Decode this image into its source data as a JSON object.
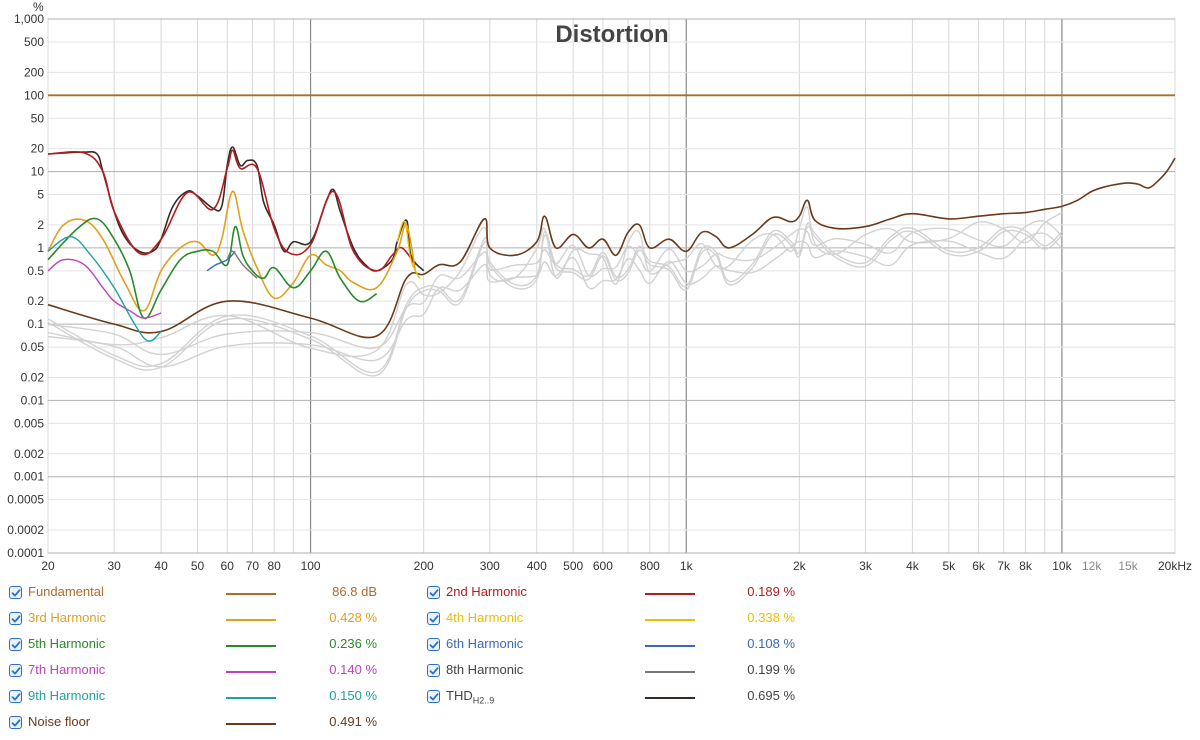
{
  "chart_data": {
    "type": "line",
    "title": "Distortion",
    "yunit": "%",
    "xunit": "Hz",
    "x_scale": "log",
    "y_scale": "log",
    "xlim": [
      20,
      20000
    ],
    "ylim": [
      0.0001,
      1000
    ],
    "grid": true,
    "x_ticks": [
      {
        "v": 20,
        "label": "20"
      },
      {
        "v": 30,
        "label": "30"
      },
      {
        "v": 40,
        "label": "40"
      },
      {
        "v": 50,
        "label": "50"
      },
      {
        "v": 60,
        "label": "60"
      },
      {
        "v": 70,
        "label": "70"
      },
      {
        "v": 80,
        "label": "80"
      },
      {
        "v": 100,
        "label": "100"
      },
      {
        "v": 200,
        "label": "200"
      },
      {
        "v": 300,
        "label": "300"
      },
      {
        "v": 400,
        "label": "400"
      },
      {
        "v": 500,
        "label": "500"
      },
      {
        "v": 600,
        "label": "600"
      },
      {
        "v": 800,
        "label": "800"
      },
      {
        "v": 1000,
        "label": "1k"
      },
      {
        "v": 2000,
        "label": "2k"
      },
      {
        "v": 3000,
        "label": "3k"
      },
      {
        "v": 4000,
        "label": "4k"
      },
      {
        "v": 5000,
        "label": "5k"
      },
      {
        "v": 6000,
        "label": "6k"
      },
      {
        "v": 7000,
        "label": "7k"
      },
      {
        "v": 8000,
        "label": "8k"
      },
      {
        "v": 10000,
        "label": "10k"
      },
      {
        "v": 12000,
        "label": "12k",
        "minor": true
      },
      {
        "v": 15000,
        "label": "15k",
        "minor": true
      },
      {
        "v": 20000,
        "label": "20kHz"
      }
    ],
    "y_ticks": [
      {
        "v": 1000,
        "label": "1,000"
      },
      {
        "v": 500,
        "label": "500"
      },
      {
        "v": 200,
        "label": "200"
      },
      {
        "v": 100,
        "label": "100"
      },
      {
        "v": 50,
        "label": "50"
      },
      {
        "v": 20,
        "label": "20"
      },
      {
        "v": 10,
        "label": "10"
      },
      {
        "v": 5,
        "label": "5"
      },
      {
        "v": 2,
        "label": "2"
      },
      {
        "v": 1,
        "label": "1"
      },
      {
        "v": 0.5,
        "label": "0.5"
      },
      {
        "v": 0.2,
        "label": "0.2"
      },
      {
        "v": 0.1,
        "label": "0.1"
      },
      {
        "v": 0.05,
        "label": "0.05"
      },
      {
        "v": 0.02,
        "label": "0.02"
      },
      {
        "v": 0.01,
        "label": "0.01"
      },
      {
        "v": 0.005,
        "label": "0.005"
      },
      {
        "v": 0.002,
        "label": "0.002"
      },
      {
        "v": 0.001,
        "label": "0.001"
      },
      {
        "v": 0.0005,
        "label": "0.0005"
      },
      {
        "v": 0.0002,
        "label": "0.0002"
      },
      {
        "v": 0.0001,
        "label": "0.0001"
      }
    ],
    "series": [
      {
        "name": "Noise floor",
        "color": "#6b3a1a",
        "width": 1.6,
        "points": [
          [
            20,
            0.18
          ],
          [
            30,
            0.1
          ],
          [
            40,
            0.08
          ],
          [
            60,
            0.2
          ],
          [
            100,
            0.12
          ],
          [
            150,
            0.07
          ],
          [
            180,
            0.4
          ],
          [
            200,
            0.45
          ],
          [
            220,
            0.6
          ],
          [
            250,
            0.65
          ],
          [
            290,
            2.4
          ],
          [
            300,
            1.0
          ],
          [
            350,
            0.8
          ],
          [
            400,
            1.2
          ],
          [
            420,
            2.6
          ],
          [
            450,
            1.0
          ],
          [
            500,
            1.5
          ],
          [
            550,
            1.0
          ],
          [
            600,
            1.3
          ],
          [
            650,
            0.8
          ],
          [
            700,
            1.6
          ],
          [
            750,
            2.0
          ],
          [
            800,
            1.0
          ],
          [
            900,
            1.3
          ],
          [
            1000,
            0.9
          ],
          [
            1100,
            1.6
          ],
          [
            1200,
            1.4
          ],
          [
            1300,
            1.0
          ],
          [
            1500,
            1.5
          ],
          [
            1700,
            2.5
          ],
          [
            1900,
            2.2
          ],
          [
            2000,
            2.6
          ],
          [
            2100,
            4.2
          ],
          [
            2200,
            2.3
          ],
          [
            2500,
            1.8
          ],
          [
            3000,
            1.9
          ],
          [
            3500,
            2.4
          ],
          [
            4000,
            2.8
          ],
          [
            5000,
            2.4
          ],
          [
            6000,
            2.6
          ],
          [
            7000,
            2.8
          ],
          [
            8000,
            2.9
          ],
          [
            9000,
            3.2
          ],
          [
            10000,
            3.5
          ],
          [
            11000,
            4.2
          ],
          [
            12000,
            5.5
          ],
          [
            13000,
            6.3
          ],
          [
            14000,
            6.8
          ],
          [
            15000,
            7.1
          ],
          [
            16000,
            6.8
          ],
          [
            17000,
            6.1
          ],
          [
            18000,
            7.5
          ],
          [
            19000,
            10.0
          ],
          [
            20000,
            15.0
          ]
        ]
      },
      {
        "name": "THD",
        "color": "#3a2a26",
        "width": 1.6,
        "points": [
          [
            20,
            17
          ],
          [
            22,
            17.5
          ],
          [
            25,
            18
          ],
          [
            27,
            17
          ],
          [
            28,
            10
          ],
          [
            30,
            3
          ],
          [
            32,
            1.4
          ],
          [
            35,
            0.9
          ],
          [
            38,
            0.9
          ],
          [
            40,
            1.3
          ],
          [
            43,
            3.5
          ],
          [
            47,
            5.5
          ],
          [
            50,
            4.8
          ],
          [
            55,
            3.3
          ],
          [
            58,
            3.5
          ],
          [
            60,
            12
          ],
          [
            62,
            21
          ],
          [
            65,
            12
          ],
          [
            68,
            14
          ],
          [
            72,
            12
          ],
          [
            75,
            4
          ],
          [
            80,
            2
          ],
          [
            85,
            0.9
          ],
          [
            90,
            1.2
          ],
          [
            100,
            1.2
          ],
          [
            110,
            4
          ],
          [
            115,
            5.8
          ],
          [
            120,
            3
          ],
          [
            130,
            1.0
          ],
          [
            140,
            0.6
          ],
          [
            150,
            0.5
          ],
          [
            165,
            0.7
          ],
          [
            170,
            1.2
          ],
          [
            180,
            2.3
          ],
          [
            185,
            0.8
          ],
          [
            200,
            0.5
          ]
        ]
      },
      {
        "name": "2nd Harmonic",
        "color": "#b01e1e",
        "width": 1.6,
        "points": [
          [
            20,
            17
          ],
          [
            25,
            17.5
          ],
          [
            28,
            10
          ],
          [
            30,
            3
          ],
          [
            35,
            0.85
          ],
          [
            40,
            1.3
          ],
          [
            47,
            5.3
          ],
          [
            55,
            3.2
          ],
          [
            60,
            11
          ],
          [
            62,
            19
          ],
          [
            65,
            11
          ],
          [
            72,
            11
          ],
          [
            80,
            1.8
          ],
          [
            88,
            0.85
          ],
          [
            100,
            1.1
          ],
          [
            115,
            5.5
          ],
          [
            130,
            0.9
          ],
          [
            150,
            0.5
          ],
          [
            165,
            0.8
          ],
          [
            175,
            1.0
          ],
          [
            190,
            0.6
          ]
        ]
      },
      {
        "name": "3rd Harmonic",
        "color": "#e0a020",
        "width": 1.6,
        "points": [
          [
            20,
            0.9
          ],
          [
            22,
            2.0
          ],
          [
            25,
            2.3
          ],
          [
            28,
            1.3
          ],
          [
            32,
            0.35
          ],
          [
            36,
            0.15
          ],
          [
            40,
            0.5
          ],
          [
            45,
            1.0
          ],
          [
            50,
            1.2
          ],
          [
            55,
            0.8
          ],
          [
            58,
            1.3
          ],
          [
            62,
            5.5
          ],
          [
            66,
            1.7
          ],
          [
            72,
            0.55
          ],
          [
            80,
            0.22
          ],
          [
            90,
            0.35
          ],
          [
            100,
            0.8
          ],
          [
            110,
            0.6
          ],
          [
            120,
            0.5
          ],
          [
            130,
            0.35
          ],
          [
            150,
            0.3
          ],
          [
            170,
            0.9
          ],
          [
            180,
            2.0
          ],
          [
            190,
            0.5
          ]
        ]
      },
      {
        "name": "4th Harmonic",
        "color": "#e8c000",
        "width": 1.4,
        "points": [
          [
            170,
            1.2
          ],
          [
            178,
            2.2
          ],
          [
            185,
            0.7
          ],
          [
            195,
            0.4
          ]
        ]
      },
      {
        "name": "5th Harmonic",
        "color": "#2a8a2a",
        "width": 1.6,
        "points": [
          [
            20,
            0.7
          ],
          [
            24,
            1.8
          ],
          [
            27,
            2.4
          ],
          [
            30,
            1.3
          ],
          [
            33,
            0.5
          ],
          [
            36,
            0.12
          ],
          [
            40,
            0.28
          ],
          [
            45,
            0.7
          ],
          [
            50,
            0.9
          ],
          [
            55,
            0.9
          ],
          [
            60,
            0.6
          ],
          [
            63,
            1.9
          ],
          [
            66,
            0.8
          ],
          [
            70,
            0.5
          ],
          [
            75,
            0.4
          ],
          [
            80,
            0.55
          ],
          [
            90,
            0.3
          ],
          [
            100,
            0.5
          ],
          [
            110,
            0.9
          ],
          [
            120,
            0.4
          ],
          [
            135,
            0.2
          ],
          [
            150,
            0.25
          ]
        ]
      },
      {
        "name": "6th Harmonic",
        "color": "#3a6ab0",
        "width": 1.4,
        "points": [
          [
            53,
            0.5
          ],
          [
            56,
            0.6
          ],
          [
            60,
            0.7
          ],
          [
            63,
            0.9
          ]
        ]
      },
      {
        "name": "7th Harmonic",
        "color": "#c040c0",
        "width": 1.4,
        "points": [
          [
            20,
            0.5
          ],
          [
            22,
            0.7
          ],
          [
            25,
            0.6
          ],
          [
            28,
            0.3
          ],
          [
            30,
            0.2
          ],
          [
            33,
            0.15
          ],
          [
            36,
            0.12
          ],
          [
            40,
            0.14
          ]
        ]
      },
      {
        "name": "8th Harmonic",
        "color": "#777777",
        "width": 1.4,
        "points": [
          [
            60,
            0.7
          ],
          [
            62,
            0.9
          ],
          [
            66,
            0.6
          ],
          [
            72,
            0.4
          ]
        ]
      },
      {
        "name": "9th Harmonic",
        "color": "#20a0a0",
        "width": 1.4,
        "points": [
          [
            20,
            0.9
          ],
          [
            23,
            1.4
          ],
          [
            26,
            0.8
          ],
          [
            30,
            0.3
          ],
          [
            34,
            0.1
          ],
          [
            37,
            0.06
          ],
          [
            40,
            0.08
          ]
        ]
      },
      {
        "name": "Fundamental",
        "color": "#b06a2a",
        "width": 1.8,
        "points": [
          [
            20,
            100
          ],
          [
            20000,
            100
          ]
        ]
      }
    ],
    "legend": [
      {
        "name": "Fundamental",
        "value": "86.8 dB",
        "color": "#b06a2a"
      },
      {
        "name": "2nd Harmonic",
        "value": "0.189 %",
        "color": "#b01e1e"
      },
      {
        "name": "3rd Harmonic",
        "value": "0.428 %",
        "color": "#e0a020"
      },
      {
        "name": "4th Harmonic",
        "value": "0.338 %",
        "color": "#e8c000"
      },
      {
        "name": "5th Harmonic",
        "value": "0.236 %",
        "color": "#2a8a2a"
      },
      {
        "name": "6th Harmonic",
        "value": "0.108 %",
        "color": "#3a6ab0"
      },
      {
        "name": "7th Harmonic",
        "value": "0.140 %",
        "color": "#c040c0"
      },
      {
        "name": "8th Harmonic",
        "value": "0.199 %",
        "color": "#777777"
      },
      {
        "name": "9th Harmonic",
        "value": "0.150 %",
        "color": "#20a0a0"
      },
      {
        "name": "THD",
        "sub": "H2..9",
        "value": "0.695 %",
        "color": "#3a2a26"
      },
      {
        "name": "Noise floor",
        "value": "0.491 %",
        "color": "#6b3a1a"
      }
    ]
  }
}
